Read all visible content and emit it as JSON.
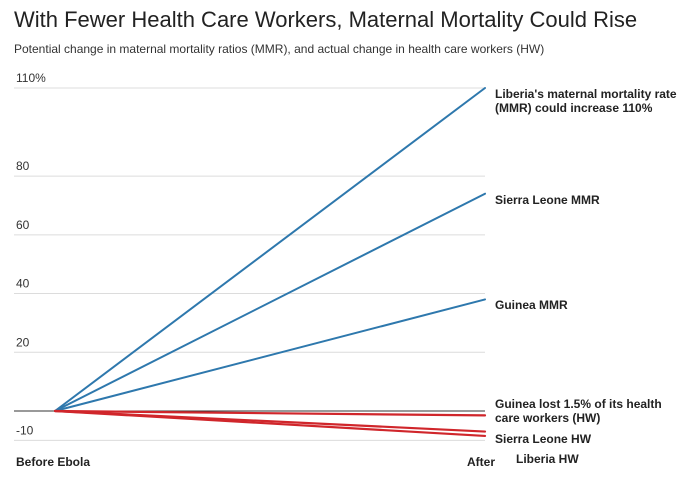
{
  "header": {
    "title": "With Fewer Health Care Workers, Maternal Mortality Could Rise",
    "subtitle": "Potential change in maternal mortality ratios (MMR), and actual change in health care workers (HW)"
  },
  "chart_data": {
    "type": "line",
    "title": "With Fewer Health Care Workers, Maternal Mortality Could Rise",
    "subtitle": "Potential change in maternal mortality ratios (MMR), and actual change in health care workers (HW)",
    "x": [
      "Before Ebola",
      "After"
    ],
    "y_ticks": [
      {
        "value": 110,
        "label": "110%"
      },
      {
        "value": 80,
        "label": "80"
      },
      {
        "value": 60,
        "label": "60"
      },
      {
        "value": 40,
        "label": "40"
      },
      {
        "value": 20,
        "label": "20"
      },
      {
        "value": -10,
        "label": "-10"
      }
    ],
    "ylim": [
      -11,
      112
    ],
    "grid": true,
    "series": [
      {
        "name": "Liberia MMR",
        "label": [
          "Liberia's maternal mortality rate",
          "(MMR) could increase 110%"
        ],
        "values": [
          0,
          110
        ],
        "color": "#2e78ad"
      },
      {
        "name": "Sierra Leone MMR",
        "label": [
          "Sierra Leone MMR"
        ],
        "values": [
          0,
          74
        ],
        "color": "#2e78ad"
      },
      {
        "name": "Guinea MMR",
        "label": [
          "Guinea MMR"
        ],
        "values": [
          0,
          38
        ],
        "color": "#2e78ad"
      },
      {
        "name": "Guinea HW",
        "label": [
          "Guinea lost 1.5% of its health",
          "care workers (HW)"
        ],
        "values": [
          0,
          -1.5
        ],
        "color": "#d0262b"
      },
      {
        "name": "Sierra Leone HW",
        "label": [
          "Sierra Leone HW"
        ],
        "values": [
          0,
          -7
        ],
        "color": "#d0262b"
      },
      {
        "name": "Liberia HW",
        "label": [
          "Liberia HW"
        ],
        "values": [
          0,
          -8.5
        ],
        "color": "#d0262b"
      }
    ]
  }
}
